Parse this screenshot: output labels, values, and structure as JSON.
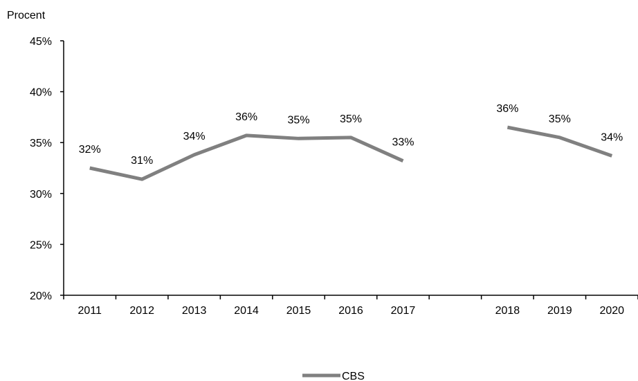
{
  "chart_data": {
    "type": "line",
    "title": "",
    "ylabel": "Procent",
    "xlabel": "",
    "ylim": [
      0.2,
      0.45
    ],
    "yticks": [
      0.2,
      0.25,
      0.3,
      0.35,
      0.4,
      0.45
    ],
    "ytick_labels": [
      "20%",
      "25%",
      "30%",
      "35%",
      "40%",
      "45%"
    ],
    "categories": [
      "2011",
      "2012",
      "2013",
      "2014",
      "2015",
      "2016",
      "2017",
      "",
      "2018",
      "2019",
      "2020"
    ],
    "grid": false,
    "legend": "bottom-center",
    "series": [
      {
        "name": "CBS",
        "color": "#808080",
        "values": [
          0.325,
          0.314,
          0.338,
          0.357,
          0.354,
          0.355,
          0.332,
          null,
          0.365,
          0.355,
          0.337
        ],
        "labels": [
          "32%",
          "31%",
          "34%",
          "36%",
          "35%",
          "35%",
          "33%",
          "",
          "36%",
          "35%",
          "34%"
        ]
      }
    ]
  }
}
